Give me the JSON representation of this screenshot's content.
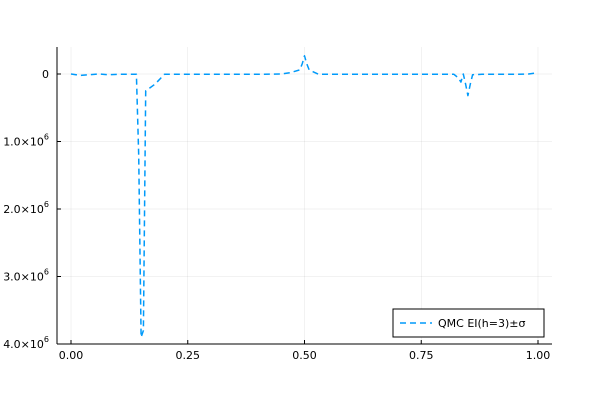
{
  "chart_data": {
    "type": "line",
    "title": "",
    "xlabel": "",
    "ylabel": "",
    "xlim": [
      -0.03,
      1.03
    ],
    "ylim": [
      -4000000,
      400000
    ],
    "y_axis_inverted_label_sign": true,
    "grid": true,
    "legend_position": "bottom-right",
    "x_ticks": [
      {
        "value": 0.0,
        "label": "0.00"
      },
      {
        "value": 0.25,
        "label": "0.25"
      },
      {
        "value": 0.5,
        "label": "0.50"
      },
      {
        "value": 0.75,
        "label": "0.75"
      },
      {
        "value": 1.0,
        "label": "1.00"
      }
    ],
    "y_ticks": [
      {
        "value": 0,
        "mantissa": "0",
        "exponent": ""
      },
      {
        "value": -1000000,
        "mantissa": "1.0×10",
        "exponent": "6"
      },
      {
        "value": -2000000,
        "mantissa": "2.0×10",
        "exponent": "6"
      },
      {
        "value": -3000000,
        "mantissa": "3.0×10",
        "exponent": "6"
      },
      {
        "value": -4000000,
        "mantissa": "4.0×10",
        "exponent": "6"
      }
    ],
    "series": [
      {
        "name": "QMC EI(h=3)±σ",
        "color": "#009AFA",
        "style": "dashed",
        "x": [
          0.0,
          0.02,
          0.04,
          0.06,
          0.08,
          0.1,
          0.12,
          0.14,
          0.145,
          0.15,
          0.155,
          0.16,
          0.18,
          0.2,
          0.25,
          0.3,
          0.35,
          0.4,
          0.45,
          0.47,
          0.49,
          0.495,
          0.5,
          0.505,
          0.51,
          0.53,
          0.55,
          0.6,
          0.65,
          0.7,
          0.75,
          0.8,
          0.82,
          0.83,
          0.835,
          0.84,
          0.845,
          0.85,
          0.855,
          0.86,
          0.88,
          0.9,
          0.95,
          0.98,
          1.0
        ],
        "values": [
          0,
          -20000,
          -10000,
          0,
          -10000,
          -5000,
          -5000,
          -5000,
          -1200000,
          -3900000,
          -3800000,
          -250000,
          -150000,
          -5000,
          -5000,
          -5000,
          -5000,
          -5000,
          0,
          20000,
          60000,
          150000,
          270000,
          150000,
          60000,
          -5000,
          -5000,
          -5000,
          -5000,
          -5000,
          -5000,
          -5000,
          -5000,
          -60000,
          -120000,
          0,
          -150000,
          -320000,
          -150000,
          -10000,
          -5000,
          -5000,
          -5000,
          0,
          20000
        ]
      }
    ]
  }
}
